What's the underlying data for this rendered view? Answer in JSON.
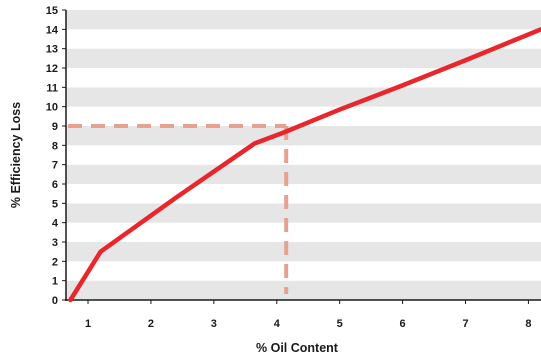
{
  "chart_data": {
    "type": "line",
    "title": "",
    "xlabel": "% Oil Content",
    "ylabel": "% Efficiency Loss",
    "xlim": [
      0.65,
      8.2
    ],
    "ylim": [
      0,
      15
    ],
    "x_ticks": [
      1,
      2,
      3,
      4,
      5,
      6,
      7,
      8
    ],
    "y_ticks": [
      0,
      1,
      2,
      3,
      4,
      5,
      6,
      7,
      8,
      9,
      10,
      11,
      12,
      13,
      14,
      15
    ],
    "grid": "alternating horizontal bands",
    "series": [
      {
        "color": "#e8262c",
        "x": [
          0.72,
          1.2,
          2.4,
          3.65,
          4.1,
          5.0,
          6.0,
          7.0,
          8.2
        ],
        "y": [
          0,
          2.5,
          5.3,
          8.1,
          8.65,
          9.85,
          11.1,
          12.4,
          14.0
        ]
      }
    ],
    "reference_lines": {
      "color": "#e8a090",
      "style": "dashed",
      "point": {
        "x": 4.15,
        "y": 9
      }
    }
  }
}
